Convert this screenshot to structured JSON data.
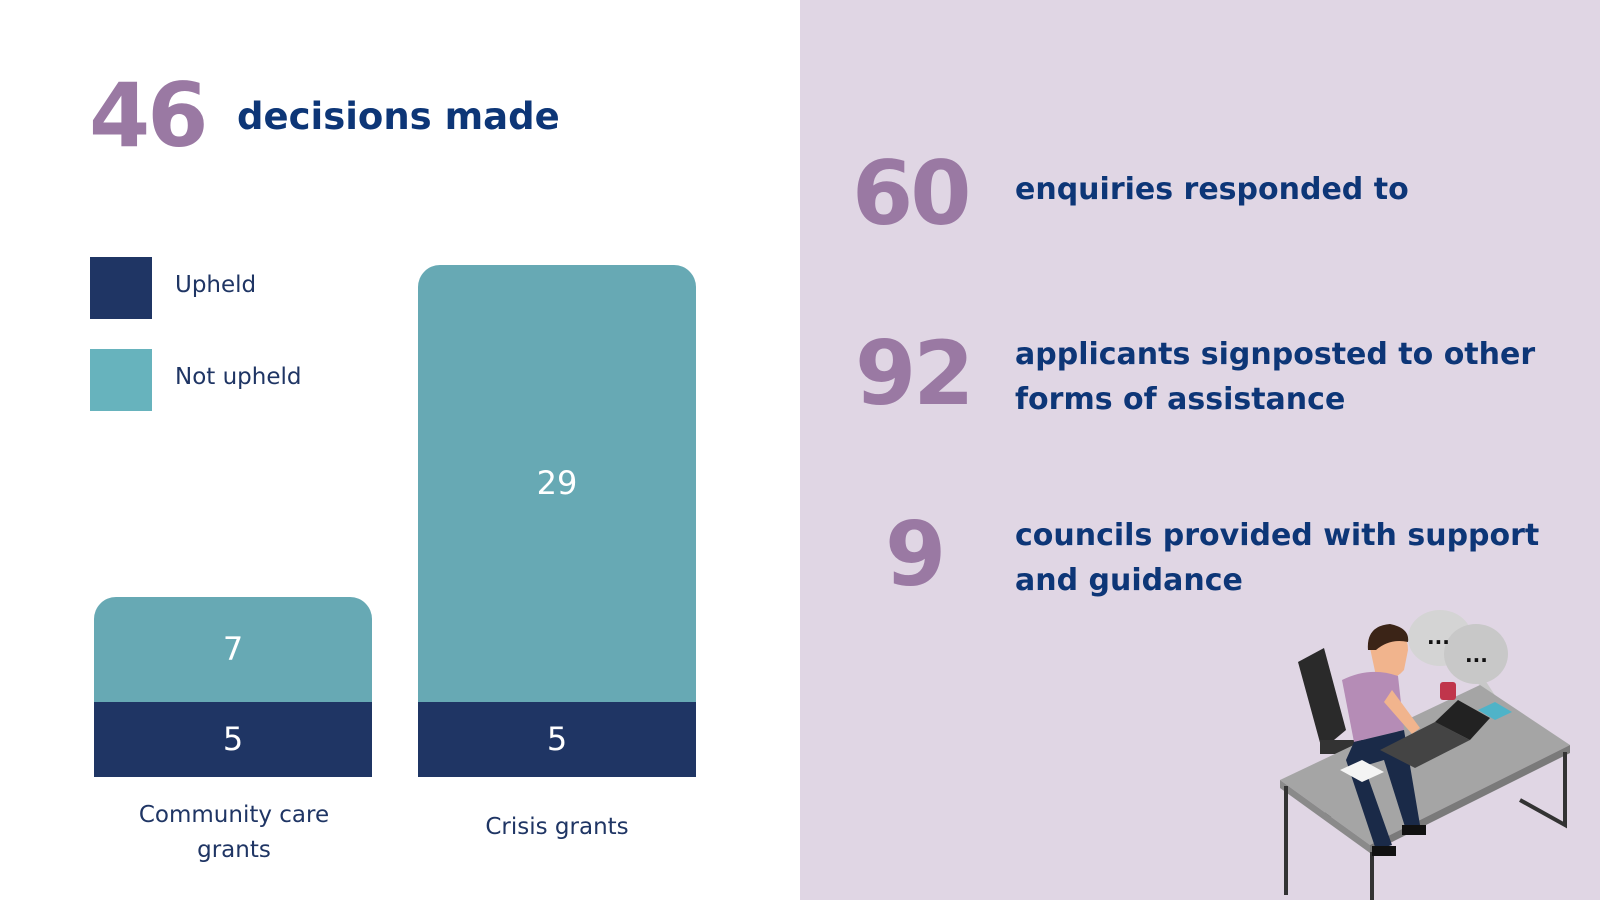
{
  "headline": {
    "number": "46",
    "text": "decisions made"
  },
  "chart_data": {
    "type": "bar",
    "stacked": true,
    "categories": [
      "Community care grants",
      "Crisis grants"
    ],
    "series": [
      {
        "name": "Upheld",
        "values": [
          5,
          5
        ],
        "color": "#1f3564"
      },
      {
        "name": "Not upheld",
        "values": [
          7,
          29
        ],
        "color": "#67a9b4"
      }
    ],
    "legend_position": "left",
    "grid": false
  },
  "legend": {
    "swatch_colors": [
      "#1f3564",
      "#67b3bd"
    ]
  },
  "stats": [
    {
      "number": "60",
      "text": "enquiries responded to"
    },
    {
      "number": "92",
      "text": "applicants signposted to other forms of assistance"
    },
    {
      "number": "9",
      "text": "councils provided with support and guidance"
    }
  ],
  "illustration": {
    "name": "person-at-desk-icon",
    "speech_text": [
      "...",
      "..."
    ]
  },
  "colors": {
    "accent": "#9a79a3",
    "navy": "#0d3677",
    "panel": "#e0d6e4"
  }
}
